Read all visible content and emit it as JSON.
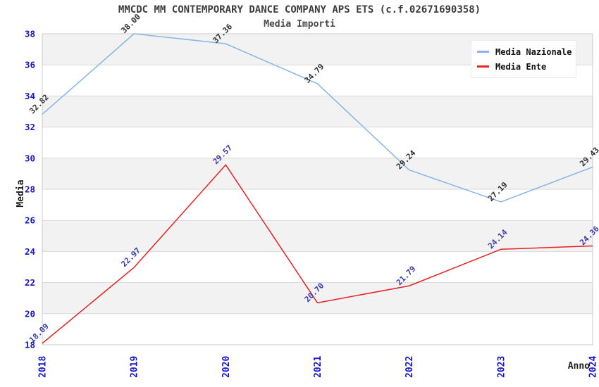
{
  "header": {
    "title": "MMCDC MM CONTEMPORARY DANCE COMPANY APS ETS (c.f.02671690358)",
    "subtitle": "Media Importi"
  },
  "chart_data": {
    "type": "line",
    "x": [
      "2018",
      "2019",
      "2020",
      "2021",
      "2022",
      "2023",
      "2024"
    ],
    "series": [
      {
        "name": "Media Nazionale",
        "color": "#85b5e8",
        "label_color": "#2f2f2f",
        "values": [
          32.82,
          38.0,
          37.36,
          34.79,
          29.24,
          27.19,
          29.43
        ]
      },
      {
        "name": "Media Ente",
        "color": "#e62222",
        "label_color": "#3939ad",
        "values": [
          18.09,
          22.97,
          29.57,
          20.7,
          21.79,
          24.14,
          24.36
        ]
      }
    ],
    "xlabel": "Anno",
    "ylabel": "Media",
    "ylim": [
      18,
      38
    ],
    "yticks": [
      18,
      20,
      22,
      24,
      26,
      28,
      30,
      32,
      34,
      36,
      38
    ],
    "tick_color": "#1515cf",
    "band_color": "#f2f2f2",
    "grid_color": "#d9d9d9",
    "border_color": "#cbcbcb",
    "grid": true,
    "legend_position": "top-right"
  }
}
